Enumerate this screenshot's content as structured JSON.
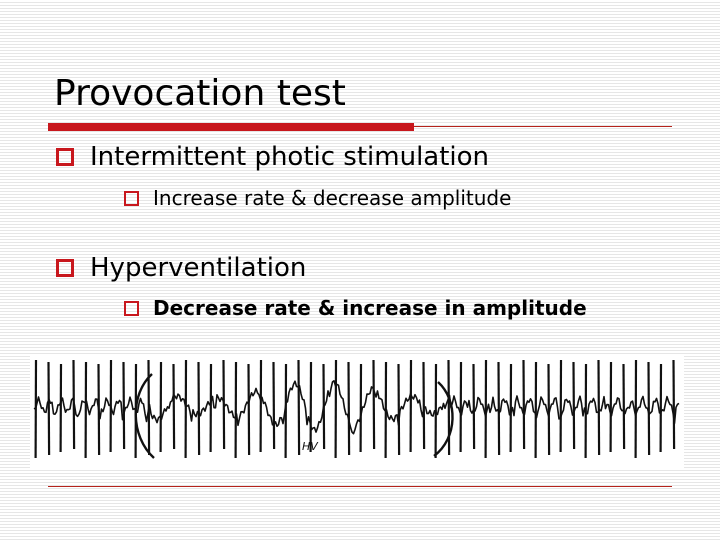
{
  "slide": {
    "title": "Provocation test",
    "bullets": [
      {
        "text": "Intermittent photic stimulation",
        "sub": "Increase rate & decrease amplitude"
      },
      {
        "text": "Hyperventilation",
        "sub": "Decrease rate & increase in amplitude"
      }
    ],
    "figure": {
      "label": "HV"
    }
  },
  "colors": {
    "accent_red": "#c8171d",
    "rule_red": "#b5231c",
    "text": "#000000"
  },
  "icons": {
    "bullet": "hollow-square-bullet-icon"
  }
}
